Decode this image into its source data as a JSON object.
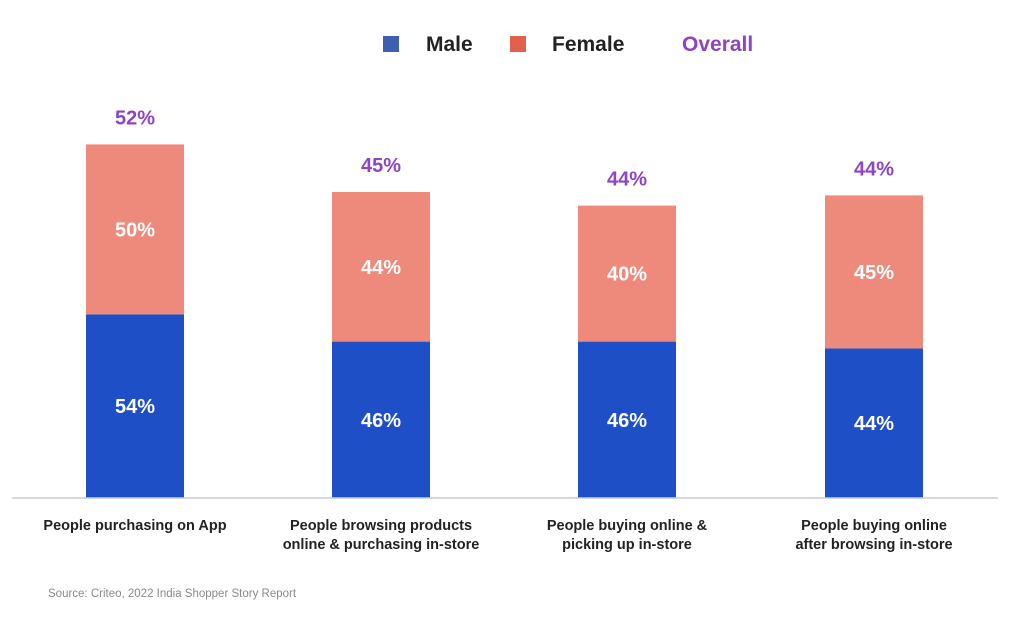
{
  "chart_data": {
    "type": "bar",
    "stacked": true,
    "categories": [
      [
        "People purchasing on App"
      ],
      [
        "People browsing products",
        "online & purchasing in-store"
      ],
      [
        "People buying online &",
        "picking up in-store"
      ],
      [
        "People buying online",
        "after browsing in-store"
      ]
    ],
    "series": [
      {
        "name": "Male",
        "values": [
          "54%",
          "46%",
          "46%",
          "44%"
        ]
      },
      {
        "name": "Female",
        "values": [
          "50%",
          "44%",
          "40%",
          "45%"
        ]
      }
    ],
    "overall": {
      "name": "Overall",
      "values": [
        "52%",
        "45%",
        "44%",
        "44%"
      ]
    },
    "bar_heights": {
      "male": [
        54,
        46,
        46,
        44
      ],
      "female": [
        50,
        44,
        40,
        45
      ]
    },
    "legend_position": "top-center",
    "grid": false
  },
  "colors": {
    "male": "#1f4fc6",
    "female": "#ee8a7b",
    "overall": "#8e44c4",
    "axis": "#c9ccd6",
    "legend_male": "#3d5fb0",
    "legend_female": "#e2604e"
  },
  "source": "Source: Criteo, 2022 India Shopper Story Report"
}
